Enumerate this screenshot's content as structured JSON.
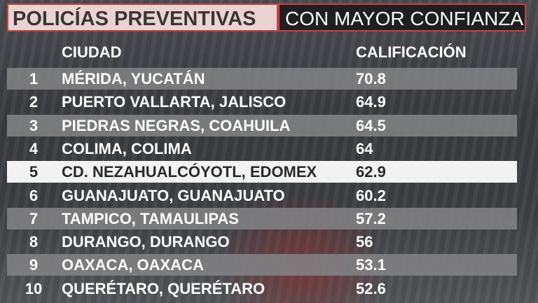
{
  "title": {
    "left": "POLICÍAS PREVENTIVAS",
    "right": "CON MAYOR CONFIANZA"
  },
  "table": {
    "headers": [
      "CIUDAD",
      "CALIFICACIÓN"
    ],
    "rows": [
      [
        1,
        "MÉRIDA, YUCATÁN",
        70.8
      ],
      [
        2,
        "PUERTO VALLARTA, JALISCO",
        64.9
      ],
      [
        3,
        "PIEDRAS NEGRAS, COAHUILA",
        64.5
      ],
      [
        4,
        "COLIMA, COLIMA",
        64
      ],
      [
        5,
        "CD. NEZAHUALCÓYOTL, EDOMEX",
        62.9
      ],
      [
        6,
        "GUANAJUATO, GUANAJUATO",
        60.2
      ],
      [
        7,
        "TAMPICO, TAMAULIPAS",
        57.2
      ],
      [
        8,
        "DURANGO, DURANGO",
        56
      ],
      [
        9,
        "OAXACA, OAXACA",
        53.1
      ],
      [
        10,
        "QUERÉTARO, QUERÉTARO",
        52.6
      ]
    ]
  }
}
